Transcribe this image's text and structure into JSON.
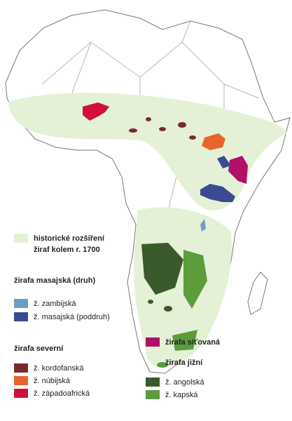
{
  "legend": [
    {
      "label": "historické rozšíření",
      "color": "#e4f1d6"
    },
    {
      "label": "žiraf kolem r. 1700"
    },
    {
      "label": "žirafa masajská (druh)"
    },
    {
      "label": "ž. zambijská",
      "color": "#6b9ec2"
    },
    {
      "label": "ž. masajská (poddruh)",
      "color": "#3b4a93"
    },
    {
      "label": "žirafa síťovaná",
      "color": "#b0106a"
    },
    {
      "label": "žirafa severní"
    },
    {
      "label": "ž. kordofanská",
      "color": "#7b2a2c"
    },
    {
      "label": "ž. núbijská",
      "color": "#e8642b"
    },
    {
      "label": "ž. západoafrická",
      "color": "#d20f3c"
    },
    {
      "label": "žirafa jižní"
    },
    {
      "label": "ž. angolská",
      "color": "#3a5a2b"
    },
    {
      "label": "ž. kapská",
      "color": "#5c9c3b"
    }
  ]
}
